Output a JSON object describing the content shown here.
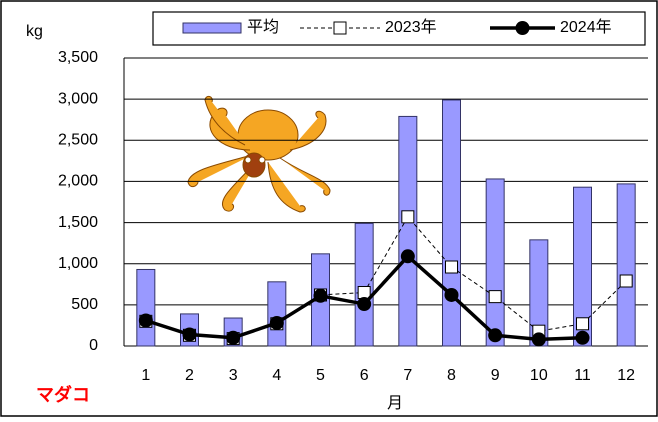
{
  "chart_data": {
    "type": "bar",
    "y_unit": "kg",
    "x_label": "月",
    "annotation": "マダコ",
    "categories": [
      "1",
      "2",
      "3",
      "4",
      "5",
      "6",
      "7",
      "8",
      "9",
      "10",
      "11",
      "12"
    ],
    "series": [
      {
        "name": "平均",
        "type": "bar",
        "color": "#9999ff",
        "values": [
          930,
          390,
          340,
          780,
          1120,
          1490,
          2790,
          2990,
          2030,
          1290,
          1930,
          1970
        ]
      },
      {
        "name": "2023年",
        "type": "line",
        "line_style": "dashed",
        "marker": "square",
        "color": "#000000",
        "values": [
          300,
          130,
          90,
          270,
          620,
          650,
          1570,
          960,
          600,
          180,
          270,
          790
        ]
      },
      {
        "name": "2024年",
        "type": "line",
        "line_style": "solid",
        "marker": "circle",
        "color": "#000000",
        "values": [
          310,
          140,
          100,
          280,
          610,
          510,
          1090,
          620,
          130,
          80,
          100,
          null
        ]
      }
    ],
    "ylim": [
      0,
      3500
    ],
    "yticks": [
      0,
      500,
      {
        "value": 1000,
        "label": "1,000"
      },
      {
        "value": 1500,
        "label": "1,500"
      },
      {
        "value": 2000,
        "label": "2,000"
      },
      {
        "value": 2500,
        "label": "2,500"
      },
      {
        "value": 3000,
        "label": "3,000"
      },
      {
        "value": 3500,
        "label": "3,500"
      }
    ],
    "grid": true
  }
}
